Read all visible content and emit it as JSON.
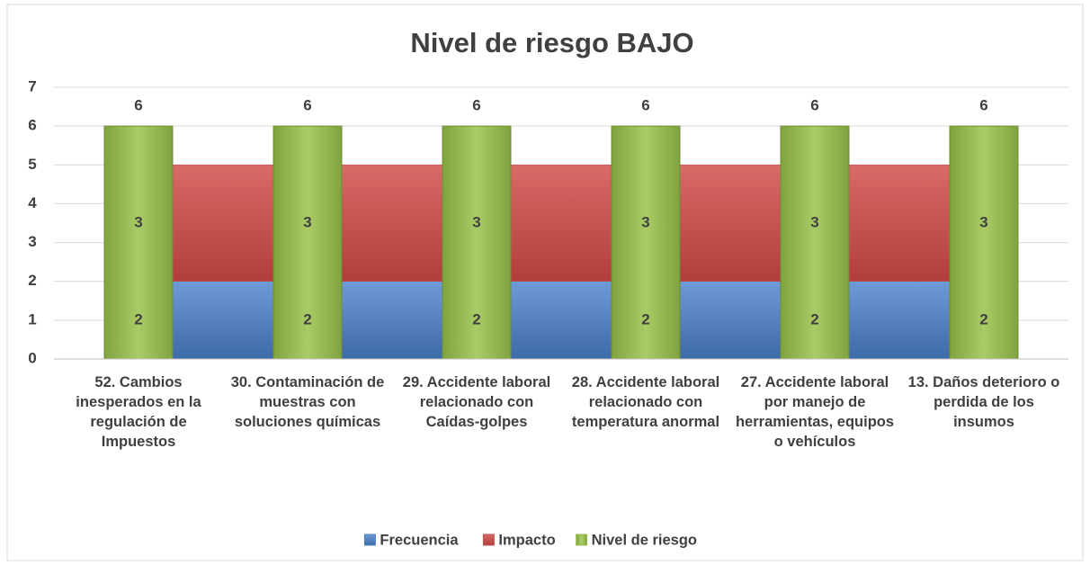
{
  "chart_data": {
    "type": "bar",
    "title": "Nivel de riesgo BAJO",
    "categories": [
      "52. Cambios inesperados en la regulación de Impuestos",
      "30. Contaminación de muestras con soluciones químicas",
      "29. Accidente laboral relacionado con Caídas-golpes",
      "28. Accidente laboral relacionado con temperatura anormal",
      "27. Accidente laboral por manejo de herramientas, equipos o vehículos",
      "13. Daños deterioro o perdida de los insumos"
    ],
    "series": [
      {
        "name": "Frecuencia",
        "color": "#4f81bd",
        "values": [
          2,
          2,
          2,
          2,
          2,
          2
        ]
      },
      {
        "name": "Impacto",
        "color": "#c0504d",
        "values": [
          3,
          3,
          3,
          3,
          3,
          3
        ]
      },
      {
        "name": "Nivel de riesgo",
        "color": "#9bbb59",
        "values": [
          6,
          6,
          6,
          6,
          6,
          6
        ]
      }
    ],
    "ylim": [
      0,
      7
    ],
    "yticks": [
      0,
      1,
      2,
      3,
      4,
      5,
      6,
      7
    ],
    "grid": true,
    "legend": "bottom"
  }
}
